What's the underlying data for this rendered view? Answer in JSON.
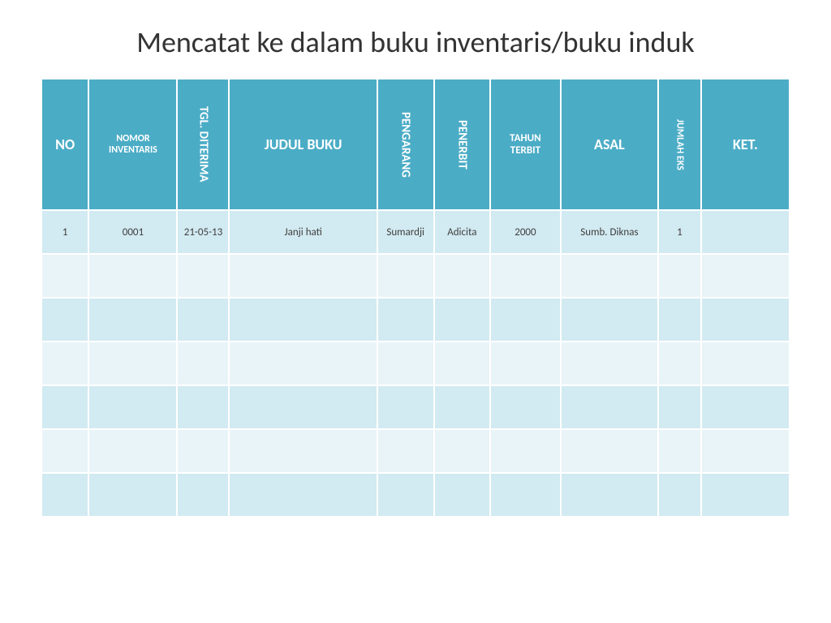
{
  "title": "Mencatat ke dalam buku inventaris/buku induk",
  "table": {
    "header_bg": "#4bacc6",
    "header_text_color": "#ffffff",
    "row_odd_bg": "#d2eaf1",
    "row_even_bg": "#e9f4f8",
    "cell_text_color": "#404040",
    "columns": [
      {
        "label": "NO",
        "vertical": false,
        "fontsize": 18
      },
      {
        "label": "NOMOR INVENTARIS",
        "vertical": false,
        "fontsize": 12
      },
      {
        "label": "TGL. DITERIMA",
        "vertical": true,
        "fontsize": 15
      },
      {
        "label": "JUDUL BUKU",
        "vertical": false,
        "fontsize": 18
      },
      {
        "label": "PENGARANG",
        "vertical": true,
        "fontsize": 15
      },
      {
        "label": "PENERBIT",
        "vertical": true,
        "fontsize": 15
      },
      {
        "label": "TAHUN TERBIT",
        "vertical": false,
        "fontsize": 13
      },
      {
        "label": "ASAL",
        "vertical": false,
        "fontsize": 18
      },
      {
        "label": "JUMLAH EKS",
        "vertical": true,
        "fontsize": 12
      },
      {
        "label": "KET.",
        "vertical": false,
        "fontsize": 18
      }
    ],
    "rows": [
      [
        "1",
        "0001",
        "21-05-13",
        "Janji hati",
        "Sumardji",
        "Adicita",
        "2000",
        "Sumb. Diknas",
        "1",
        ""
      ],
      [
        "",
        "",
        "",
        "",
        "",
        "",
        "",
        "",
        "",
        ""
      ],
      [
        "",
        "",
        "",
        "",
        "",
        "",
        "",
        "",
        "",
        ""
      ],
      [
        "",
        "",
        "",
        "",
        "",
        "",
        "",
        "",
        "",
        ""
      ],
      [
        "",
        "",
        "",
        "",
        "",
        "",
        "",
        "",
        "",
        ""
      ],
      [
        "",
        "",
        "",
        "",
        "",
        "",
        "",
        "",
        "",
        ""
      ],
      [
        "",
        "",
        "",
        "",
        "",
        "",
        "",
        "",
        "",
        ""
      ]
    ]
  }
}
